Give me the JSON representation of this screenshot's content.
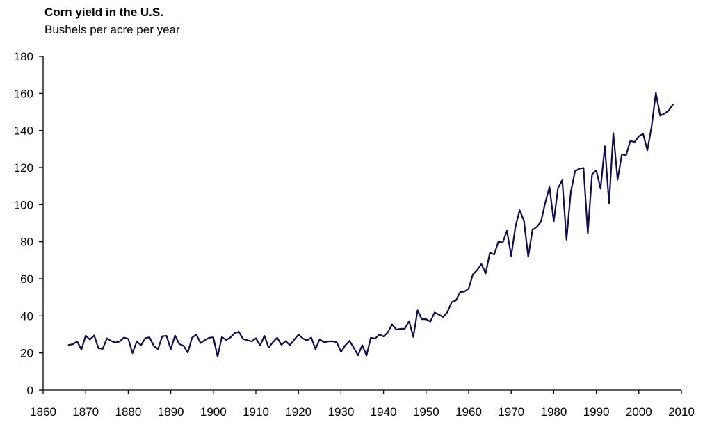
{
  "chart_data": {
    "type": "line",
    "title": "Corn yield in the U.S.",
    "subtitle": "Bushels per acre per year",
    "xlabel": "",
    "ylabel": "",
    "xlim": [
      1860,
      2010
    ],
    "ylim": [
      0,
      180
    ],
    "xticks": [
      1860,
      1870,
      1880,
      1890,
      1900,
      1910,
      1920,
      1930,
      1940,
      1950,
      1960,
      1970,
      1980,
      1990,
      2000,
      2010
    ],
    "yticks": [
      0,
      20,
      40,
      60,
      80,
      100,
      120,
      140,
      160,
      180
    ],
    "grid": false,
    "legend": "none",
    "colors": {
      "line": "#0d0d55",
      "axis": "#000000"
    },
    "series": [
      {
        "x": [
          1866,
          1867,
          1868,
          1869,
          1870,
          1871,
          1872,
          1873,
          1874,
          1875,
          1876,
          1877,
          1878,
          1879,
          1880,
          1881,
          1882,
          1883,
          1884,
          1885,
          1886,
          1887,
          1888,
          1889,
          1890,
          1891,
          1892,
          1893,
          1894,
          1895,
          1896,
          1897,
          1898,
          1899,
          1900,
          1901,
          1902,
          1903,
          1904,
          1905,
          1906,
          1907,
          1908,
          1909,
          1910,
          1911,
          1912,
          1913,
          1914,
          1915,
          1916,
          1917,
          1918,
          1919,
          1920,
          1921,
          1922,
          1923,
          1924,
          1925,
          1926,
          1927,
          1928,
          1929,
          1930,
          1931,
          1932,
          1933,
          1934,
          1935,
          1936,
          1937,
          1938,
          1939,
          1940,
          1941,
          1942,
          1943,
          1944,
          1945,
          1946,
          1947,
          1948,
          1949,
          1950,
          1951,
          1952,
          1953,
          1954,
          1955,
          1956,
          1957,
          1958,
          1959,
          1960,
          1961,
          1962,
          1963,
          1964,
          1965,
          1966,
          1967,
          1968,
          1969,
          1970,
          1971,
          1972,
          1973,
          1974,
          1975,
          1976,
          1977,
          1978,
          1979,
          1980,
          1981,
          1982,
          1983,
          1984,
          1985,
          1986,
          1987,
          1988,
          1989,
          1990,
          1991,
          1992,
          1993,
          1994,
          1995,
          1996,
          1997,
          1998,
          1999,
          2000,
          2001,
          2002,
          2003,
          2004,
          2005,
          2006,
          2007,
          2008
        ],
        "values": [
          24.3,
          24.7,
          26.2,
          21.8,
          29.3,
          27.2,
          29.4,
          22.6,
          22.2,
          27.9,
          26.4,
          25.6,
          26.2,
          28.3,
          27.6,
          19.9,
          26.2,
          24.1,
          28.0,
          28.4,
          23.8,
          22.1,
          29.0,
          29.2,
          22.0,
          29.4,
          24.8,
          23.9,
          20.2,
          28.2,
          29.9,
          25.3,
          26.9,
          28.2,
          28.4,
          18.0,
          28.6,
          27.0,
          28.3,
          30.7,
          31.4,
          27.5,
          26.9,
          26.2,
          27.9,
          24.0,
          29.2,
          22.9,
          25.8,
          28.2,
          24.4,
          26.4,
          24.2,
          27.1,
          29.9,
          27.9,
          26.7,
          28.3,
          22.1,
          27.4,
          25.7,
          26.2,
          26.3,
          25.8,
          20.5,
          24.1,
          26.5,
          22.8,
          18.7,
          24.2,
          18.6,
          28.2,
          27.7,
          29.9,
          28.9,
          31.1,
          35.4,
          32.6,
          33.0,
          33.1,
          37.2,
          28.6,
          43.0,
          38.2,
          38.2,
          36.9,
          41.8,
          40.7,
          39.4,
          42.0,
          47.4,
          48.3,
          52.8,
          53.1,
          54.7,
          62.4,
          64.7,
          67.9,
          62.9,
          74.1,
          73.1,
          80.1,
          79.5,
          85.9,
          72.4,
          88.1,
          97.0,
          91.3,
          71.9,
          86.4,
          88.0,
          90.8,
          101.0,
          109.5,
          91.0,
          108.9,
          113.2,
          81.1,
          106.7,
          118.0,
          119.4,
          119.8,
          84.6,
          116.3,
          118.5,
          108.6,
          131.5,
          100.7,
          138.6,
          113.5,
          127.1,
          126.7,
          134.4,
          133.8,
          136.9,
          138.2,
          129.3,
          142.2,
          160.4,
          148.0,
          149.1,
          150.7,
          154.0
        ]
      }
    ]
  }
}
